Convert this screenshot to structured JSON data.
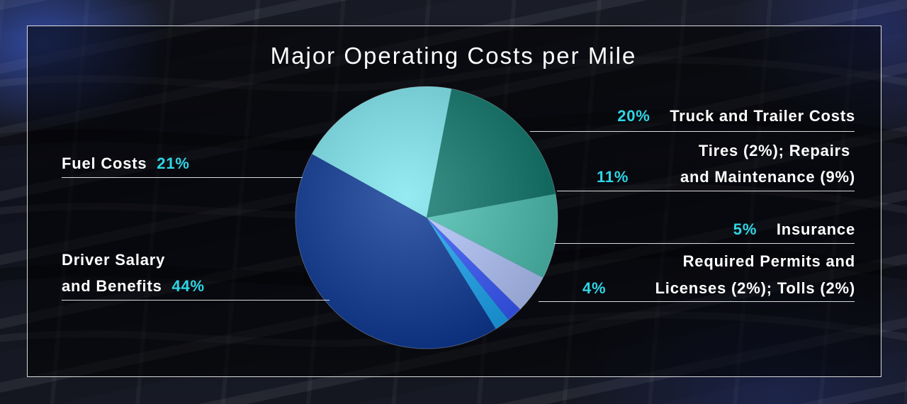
{
  "chart_data": {
    "type": "pie",
    "title": "Major Operating Costs per Mile",
    "slices": [
      {
        "label": "Truck and Trailer Costs",
        "pct_label": "20%",
        "value": 20,
        "color": "#117a6e"
      },
      {
        "label_lines": [
          "Tires (2%); Repairs",
          "and Maintenance (9%)"
        ],
        "pct_label": "11%",
        "value": 11,
        "color": "#4fc3b5"
      },
      {
        "label": "Insurance",
        "pct_label": "5%",
        "value": 5,
        "color": "#b6c9ff"
      },
      {
        "label": "Required Permits and Licenses (2%)",
        "value": 2,
        "color": "#3a5bff"
      },
      {
        "label": "Tolls (2%)",
        "value": 2,
        "color": "#1ea8f5"
      },
      {
        "label_lines": [
          "Driver Salary",
          "and Benefits"
        ],
        "pct_label": "44%",
        "value": 44,
        "color": "#0e3a96"
      },
      {
        "label": "Fuel Costs",
        "pct_label": "21%",
        "value": 21,
        "color": "#7fe6f0"
      }
    ]
  },
  "labels": {
    "truck": {
      "pct": "20%",
      "text": "Truck and Trailer Costs"
    },
    "repairs": {
      "pct": "11%",
      "line1": "Tires (2%); Repairs",
      "line2": "and Maintenance (9%)"
    },
    "insurance": {
      "pct": "5%",
      "text": "Insurance"
    },
    "permits": {
      "pct": "4%",
      "line1": "Required Permits and",
      "line2": "Licenses (2%); Tolls (2%)"
    },
    "fuel": {
      "text": "Fuel Costs",
      "pct": "21%"
    },
    "driver": {
      "line1": "Driver Salary",
      "line2": "and Benefits",
      "pct": "44%"
    }
  }
}
